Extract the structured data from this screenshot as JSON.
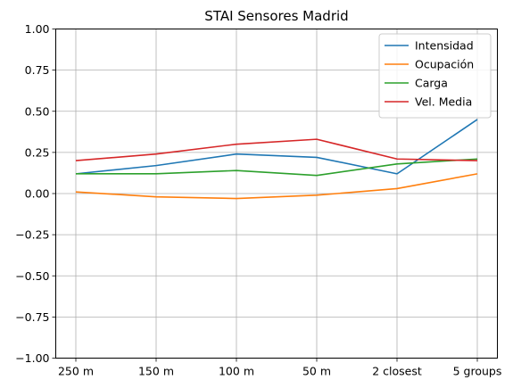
{
  "chart_data": {
    "type": "line",
    "title": "STAI Sensores Madrid",
    "xlabel": "",
    "ylabel": "",
    "categories": [
      "250 m",
      "150 m",
      "100 m",
      "50 m",
      "2 closest",
      "5 groups"
    ],
    "ylim": [
      -1.0,
      1.0
    ],
    "yticks": [
      "−1.00",
      "−0.75",
      "−0.50",
      "−0.25",
      "0.00",
      "0.25",
      "0.50",
      "0.75",
      "1.00"
    ],
    "ytick_values": [
      -1.0,
      -0.75,
      -0.5,
      -0.25,
      0.0,
      0.25,
      0.5,
      0.75,
      1.0
    ],
    "grid": true,
    "legend_position": "top-right",
    "series": [
      {
        "name": "Intensidad",
        "color": "#1f77b4",
        "values": [
          0.12,
          0.17,
          0.24,
          0.22,
          0.12,
          0.45
        ]
      },
      {
        "name": "Ocupación",
        "color": "#ff7f0e",
        "values": [
          0.01,
          -0.02,
          -0.03,
          -0.01,
          0.03,
          0.12
        ]
      },
      {
        "name": "Carga",
        "color": "#2ca02c",
        "values": [
          0.12,
          0.12,
          0.14,
          0.11,
          0.18,
          0.21
        ]
      },
      {
        "name": "Vel. Media",
        "color": "#d62728",
        "values": [
          0.2,
          0.24,
          0.3,
          0.33,
          0.21,
          0.2
        ]
      }
    ]
  }
}
